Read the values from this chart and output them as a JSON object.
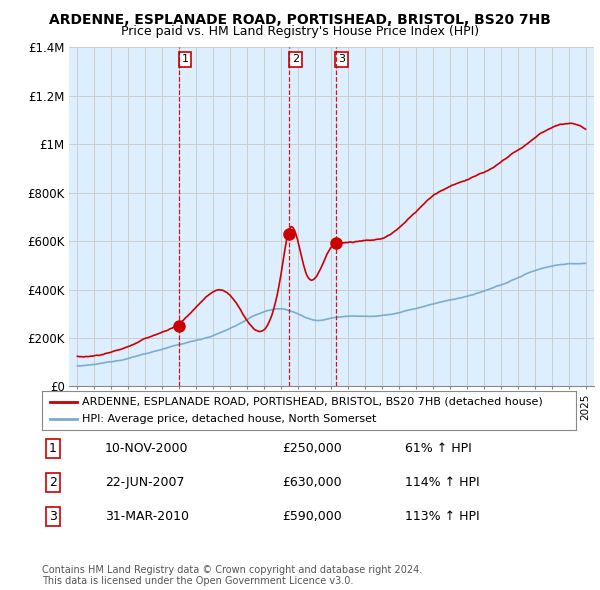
{
  "title": "ARDENNE, ESPLANADE ROAD, PORTISHEAD, BRISTOL, BS20 7HB",
  "subtitle": "Price paid vs. HM Land Registry's House Price Index (HPI)",
  "sale_color": "#cc0000",
  "hpi_color": "#7aadcf",
  "chart_bg_color": "#ddeeff",
  "background_color": "#ffffff",
  "grid_color": "#cccccc",
  "ylim": [
    0,
    1400000
  ],
  "yticks": [
    0,
    200000,
    400000,
    600000,
    800000,
    1000000,
    1200000,
    1400000
  ],
  "ytick_labels": [
    "£0",
    "£200K",
    "£400K",
    "£600K",
    "£800K",
    "£1M",
    "£1.2M",
    "£1.4M"
  ],
  "transactions": [
    {
      "label": "1",
      "date": "2000-11-10",
      "price": 250000,
      "x": 2001.0
    },
    {
      "label": "2",
      "date": "2007-06-22",
      "price": 630000,
      "x": 2007.5
    },
    {
      "label": "3",
      "date": "2010-03-31",
      "price": 590000,
      "x": 2010.25
    }
  ],
  "table_rows": [
    {
      "num": "1",
      "date": "10-NOV-2000",
      "price": "£250,000",
      "pct": "61% ↑ HPI"
    },
    {
      "num": "2",
      "date": "22-JUN-2007",
      "price": "£630,000",
      "pct": "114% ↑ HPI"
    },
    {
      "num": "3",
      "date": "31-MAR-2010",
      "price": "£590,000",
      "pct": "113% ↑ HPI"
    }
  ],
  "legend_entries": [
    "ARDENNE, ESPLANADE ROAD, PORTISHEAD, BRISTOL, BS20 7HB (detached house)",
    "HPI: Average price, detached house, North Somerset"
  ],
  "footer_line1": "Contains HM Land Registry data © Crown copyright and database right 2024.",
  "footer_line2": "This data is licensed under the Open Government Licence v3.0.",
  "xmin": 1994.5,
  "xmax": 2025.5
}
